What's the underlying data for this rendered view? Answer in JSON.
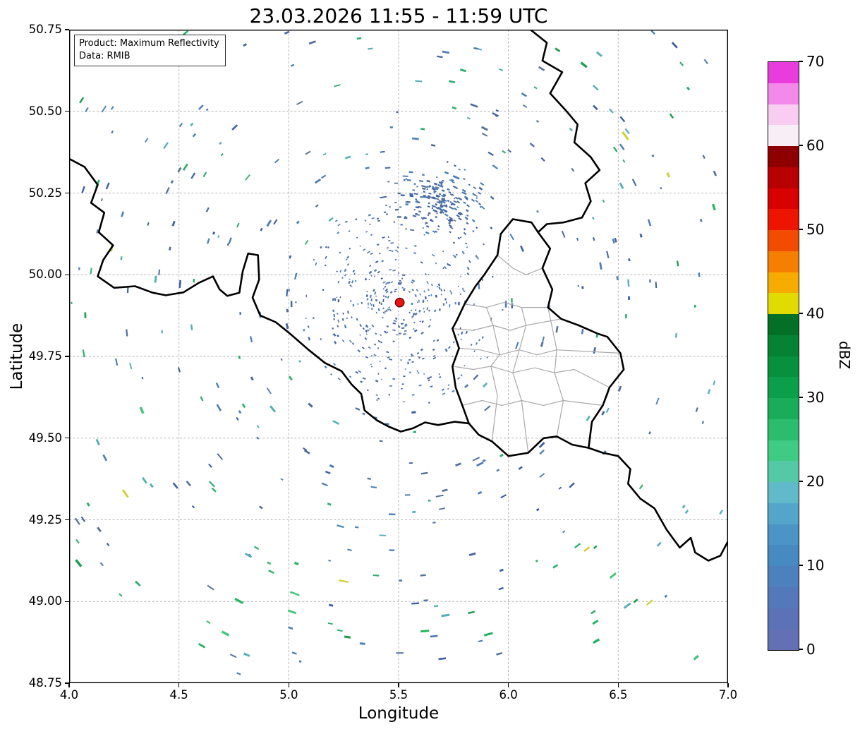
{
  "title": "23.03.2026 11:55 - 11:59 UTC",
  "info_box": {
    "product": "Product: Maximum Reflectivity",
    "source": "Data: RMIB"
  },
  "axes": {
    "x_label": "Longitude",
    "y_label": "Latitude",
    "x_range": [
      4.0,
      7.0
    ],
    "y_range": [
      48.75,
      50.75
    ],
    "x_tick_labels": [
      "4.0",
      "4.5",
      "5.0",
      "5.5",
      "6.0",
      "6.5",
      "7.0"
    ],
    "y_tick_labels": [
      "48.75",
      "49.00",
      "49.25",
      "49.50",
      "49.75",
      "50.00",
      "50.25",
      "50.50",
      "50.75"
    ],
    "grid": "dashed-gray"
  },
  "colorbar": {
    "label": "dBZ",
    "tick_labels": [
      "0",
      "10",
      "20",
      "30",
      "40",
      "50",
      "60",
      "70"
    ],
    "value_range": [
      0,
      70
    ],
    "step_dbz": 2.5,
    "segment_colors_bottom_to_top": [
      "#6370b4",
      "#5b73b6",
      "#5379ba",
      "#4c81be",
      "#4789c1",
      "#4a95c5",
      "#53a6c9",
      "#61bac9",
      "#55c8a5",
      "#3fcb84",
      "#2bbd6d",
      "#1aad59",
      "#0c9f4a",
      "#08913d",
      "#058232",
      "#037026",
      "#e2db00",
      "#f6ab00",
      "#f57f00",
      "#f14c00",
      "#ee1500",
      "#d90000",
      "#b90000",
      "#8e0000",
      "#f7eef6",
      "#f9cdf1",
      "#f38ae9",
      "#e93cdd"
    ]
  },
  "chart_data": {
    "type": "heatmap",
    "title": "23.03.2026 11:55 - 11:59 UTC",
    "product": "Maximum Reflectivity",
    "data_source": "RMIB",
    "xlabel": "Longitude",
    "ylabel": "Latitude",
    "xlim": [
      4.0,
      7.0
    ],
    "ylim": [
      48.75,
      50.75
    ],
    "colorbar": {
      "label": "dBZ",
      "range": [
        0,
        70
      ],
      "step": 2.5,
      "legend_position": "right"
    },
    "radar_site": {
      "lon": 5.505,
      "lat": 49.915,
      "marker": "red-dot",
      "marker_color": "#e81212",
      "marker_edge": "#5c0000"
    },
    "observation": "No organized precipitation: only scattered weak clutter / clear-air echoes (mostly 0-15 dBZ, isolated 20-35 dBZ streaks) arranged in rings and arcs around the radar site, a denser low-dBZ patch northeast of the radar near 5.7E/50.2N, plus a dense speckle cluster immediately around the radar.",
    "echoes": {
      "seed": 20260323,
      "center": {
        "lon": 5.505,
        "lat": 49.915
      },
      "radius_units": "degrees-latitude",
      "groups": [
        {
          "kind": "ring",
          "count": 430,
          "r_min": 0.035,
          "r_max": 0.32,
          "len_min": 1.5,
          "len_max": 4.5,
          "h_min": 1.4,
          "h_max": 2.4,
          "palette": [
            "#46679f",
            "#3d5fa6",
            "#54719b",
            "#4d7fb5",
            "#5c85b8"
          ]
        },
        {
          "kind": "patch",
          "count": 200,
          "cx": 5.68,
          "cy": 50.22,
          "sx": 0.1,
          "sy": 0.045,
          "len_min": 2,
          "len_max": 6,
          "h_min": 1.6,
          "h_max": 2.6,
          "palette": [
            "#46679f",
            "#3d5fa6",
            "#4d7fb5",
            "#54719b"
          ]
        },
        {
          "kind": "ring",
          "count": 520,
          "r_min": 0.32,
          "r_max": 1.55,
          "len_min": 3,
          "len_max": 11,
          "h_min": 1.8,
          "h_max": 3.0,
          "palette": [
            "#46679f",
            "#3d5fa6",
            "#54719b",
            "#4d7fb5",
            "#4d7fb5",
            "#2fae6e",
            "#57b0b8"
          ]
        },
        {
          "kind": "ring",
          "count": 95,
          "r_min": 0.85,
          "r_max": 1.55,
          "len_min": 5,
          "len_max": 14,
          "h_min": 2.2,
          "h_max": 3.6,
          "palette": [
            "#27b363",
            "#1f9e52",
            "#45c47a",
            "#57b0b8",
            "#cdd23c"
          ]
        }
      ]
    },
    "borders": {
      "national": [
        [
          [
            4.0,
            50.355
          ],
          [
            4.07,
            50.33
          ],
          [
            4.13,
            50.275
          ],
          [
            4.1,
            50.22
          ],
          [
            4.16,
            50.19
          ],
          [
            4.135,
            50.13
          ],
          [
            4.2,
            50.09
          ],
          [
            4.155,
            50.045
          ],
          [
            4.13,
            49.995
          ],
          [
            4.205,
            49.96
          ],
          [
            4.3,
            49.965
          ],
          [
            4.38,
            49.945
          ],
          [
            4.44,
            49.937
          ],
          [
            4.52,
            49.946
          ],
          [
            4.59,
            49.975
          ],
          [
            4.655,
            49.995
          ],
          [
            4.685,
            49.955
          ],
          [
            4.72,
            49.935
          ],
          [
            4.775,
            49.945
          ],
          [
            4.79,
            50.01
          ],
          [
            4.815,
            50.065
          ],
          [
            4.86,
            50.06
          ],
          [
            4.865,
            49.985
          ],
          [
            4.835,
            49.93
          ],
          [
            4.87,
            49.875
          ],
          [
            4.94,
            49.855
          ],
          [
            5.005,
            49.82
          ],
          [
            5.09,
            49.77
          ],
          [
            5.165,
            49.73
          ],
          [
            5.24,
            49.705
          ],
          [
            5.285,
            49.665
          ],
          [
            5.33,
            49.635
          ],
          [
            5.345,
            49.585
          ],
          [
            5.4,
            49.555
          ],
          [
            5.455,
            49.535
          ],
          [
            5.51,
            49.52
          ],
          [
            5.565,
            49.53
          ],
          [
            5.62,
            49.548
          ],
          [
            5.68,
            49.54
          ],
          [
            5.755,
            49.55
          ],
          [
            5.82,
            49.545
          ]
        ],
        [
          [
            6.1,
            50.75
          ],
          [
            6.175,
            50.71
          ],
          [
            6.155,
            50.655
          ],
          [
            6.245,
            50.62
          ],
          [
            6.19,
            50.555
          ],
          [
            6.265,
            50.5
          ],
          [
            6.315,
            50.46
          ],
          [
            6.3,
            50.405
          ],
          [
            6.375,
            50.36
          ],
          [
            6.415,
            50.32
          ],
          [
            6.35,
            50.28
          ],
          [
            6.375,
            50.225
          ],
          [
            6.335,
            50.175
          ],
          [
            6.25,
            50.16
          ],
          [
            6.175,
            50.155
          ],
          [
            6.135,
            50.13
          ]
        ],
        [
          [
            6.135,
            50.13
          ],
          [
            6.105,
            50.16
          ],
          [
            6.02,
            50.17
          ],
          [
            5.965,
            50.125
          ],
          [
            5.95,
            50.06
          ],
          [
            5.89,
            50.0
          ],
          [
            5.85,
            49.965
          ],
          [
            5.8,
            49.91
          ],
          [
            5.765,
            49.86
          ],
          [
            5.745,
            49.835
          ],
          [
            5.775,
            49.775
          ],
          [
            5.745,
            49.72
          ],
          [
            5.76,
            49.655
          ],
          [
            5.79,
            49.6
          ],
          [
            5.82,
            49.545
          ]
        ],
        [
          [
            6.135,
            50.13
          ],
          [
            6.19,
            50.08
          ],
          [
            6.155,
            50.02
          ],
          [
            6.2,
            49.955
          ],
          [
            6.18,
            49.9
          ],
          [
            6.24,
            49.865
          ],
          [
            6.32,
            49.845
          ],
          [
            6.405,
            49.82
          ],
          [
            6.45,
            49.81
          ],
          [
            6.51,
            49.76
          ],
          [
            6.525,
            49.71
          ],
          [
            6.46,
            49.655
          ],
          [
            6.43,
            49.6
          ],
          [
            6.38,
            49.55
          ],
          [
            6.365,
            49.47
          ]
        ],
        [
          [
            6.365,
            49.47
          ],
          [
            6.29,
            49.48
          ],
          [
            6.22,
            49.505
          ],
          [
            6.16,
            49.5
          ],
          [
            6.09,
            49.455
          ],
          [
            6.0,
            49.445
          ],
          [
            5.925,
            49.49
          ],
          [
            5.865,
            49.51
          ],
          [
            5.82,
            49.545
          ]
        ],
        [
          [
            6.365,
            49.47
          ],
          [
            6.43,
            49.455
          ],
          [
            6.5,
            49.445
          ],
          [
            6.555,
            49.405
          ],
          [
            6.545,
            49.36
          ],
          [
            6.6,
            49.315
          ],
          [
            6.665,
            49.285
          ],
          [
            6.72,
            49.22
          ],
          [
            6.78,
            49.165
          ],
          [
            6.83,
            49.195
          ],
          [
            6.85,
            49.15
          ],
          [
            6.91,
            49.125
          ],
          [
            6.965,
            49.14
          ],
          [
            7.0,
            49.185
          ]
        ]
      ],
      "regional": [
        [
          [
            5.95,
            50.06
          ],
          [
            6.02,
            50.02
          ],
          [
            6.08,
            50.0
          ],
          [
            6.155,
            50.02
          ]
        ],
        [
          [
            5.8,
            49.91
          ],
          [
            5.9,
            49.9
          ],
          [
            5.98,
            49.915
          ],
          [
            6.06,
            49.9
          ],
          [
            6.18,
            49.9
          ]
        ],
        [
          [
            5.745,
            49.835
          ],
          [
            5.84,
            49.83
          ],
          [
            5.93,
            49.845
          ],
          [
            6.01,
            49.83
          ],
          [
            6.08,
            49.845
          ],
          [
            6.24,
            49.865
          ]
        ],
        [
          [
            5.775,
            49.775
          ],
          [
            5.87,
            49.77
          ],
          [
            5.96,
            49.755
          ],
          [
            6.05,
            49.77
          ],
          [
            6.13,
            49.755
          ],
          [
            6.22,
            49.77
          ],
          [
            6.51,
            49.76
          ]
        ],
        [
          [
            5.745,
            49.72
          ],
          [
            5.84,
            49.71
          ],
          [
            5.92,
            49.72
          ],
          [
            6.02,
            49.7
          ],
          [
            6.12,
            49.715
          ],
          [
            6.21,
            49.7
          ],
          [
            6.3,
            49.71
          ],
          [
            6.46,
            49.655
          ]
        ],
        [
          [
            5.79,
            49.6
          ],
          [
            5.88,
            49.615
          ],
          [
            5.97,
            49.6
          ],
          [
            6.06,
            49.615
          ],
          [
            6.16,
            49.6
          ],
          [
            6.25,
            49.615
          ],
          [
            6.43,
            49.6
          ]
        ],
        [
          [
            5.9,
            49.9
          ],
          [
            5.93,
            49.845
          ],
          [
            5.96,
            49.755
          ],
          [
            5.92,
            49.72
          ],
          [
            5.95,
            49.63
          ],
          [
            5.925,
            49.49
          ]
        ],
        [
          [
            6.06,
            49.9
          ],
          [
            6.08,
            49.845
          ],
          [
            6.05,
            49.77
          ],
          [
            6.02,
            49.7
          ],
          [
            6.06,
            49.615
          ],
          [
            6.09,
            49.455
          ]
        ],
        [
          [
            6.18,
            49.9
          ],
          [
            6.22,
            49.77
          ],
          [
            6.21,
            49.7
          ],
          [
            6.25,
            49.615
          ],
          [
            6.22,
            49.505
          ]
        ]
      ]
    }
  }
}
